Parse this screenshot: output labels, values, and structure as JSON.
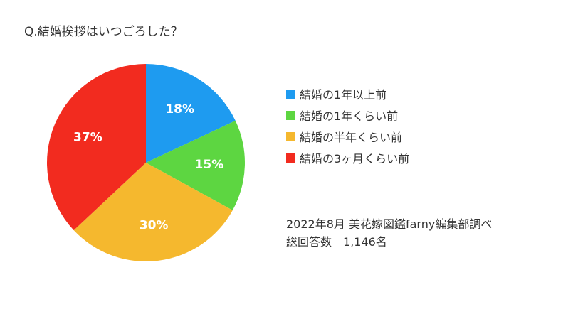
{
  "chart_data": {
    "type": "pie",
    "title": "Q.結婚挨拶はいつごろした？",
    "categories": [
      "結婚の1年以上前",
      "結婚の1年くらい前",
      "結婚の半年くらい前",
      "結婚の3ヶ月くらい前"
    ],
    "values": [
      18,
      15,
      30,
      37
    ],
    "value_labels": [
      "18%",
      "15%",
      "30%",
      "37%"
    ],
    "unit": "%",
    "colors": [
      "#1e9bf0",
      "#5dd641",
      "#f5b82e",
      "#f22b1f"
    ],
    "legend_position": "right",
    "start": "top, clockwise"
  },
  "notes": {
    "source": "2022年8月 美花嫁図鑑farny編集部調べ",
    "respondents": "総回答数　1,146名"
  }
}
